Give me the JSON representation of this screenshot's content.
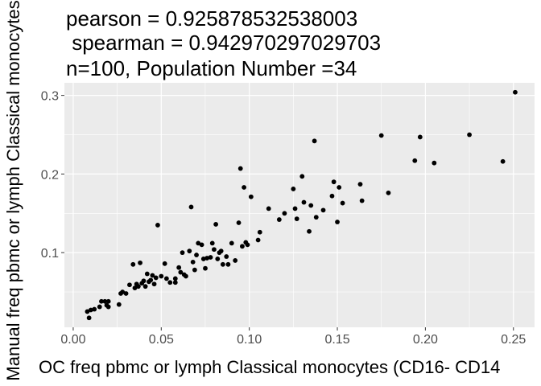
{
  "chart_data": {
    "type": "scatter",
    "title_lines": [
      "pearson = 0.925878532538003",
      " spearman = 0.942970297029703",
      "n=100, Population Number =34"
    ],
    "xlabel": "OC freq pbmc or lymph Classical monocytes (CD16- CD14",
    "ylabel": "Manual freq pbmc or lymph Classical monocytes",
    "xlim": [
      -0.005,
      0.262
    ],
    "ylim": [
      0.005,
      0.316
    ],
    "x_ticks": [
      0.0,
      0.05,
      0.1,
      0.15,
      0.2,
      0.25
    ],
    "x_tick_labels": [
      "0.00",
      "0.05",
      "0.10",
      "0.15",
      "0.20",
      "0.25"
    ],
    "y_ticks": [
      0.1,
      0.2,
      0.3
    ],
    "y_tick_labels": [
      "0.1",
      "0.2",
      "0.3"
    ],
    "grid": true,
    "point_color": "#000000",
    "panel_background": "#ebebeb",
    "grid_color": "#ffffff",
    "points": [
      [
        0.008,
        0.025
      ],
      [
        0.009,
        0.017
      ],
      [
        0.01,
        0.027
      ],
      [
        0.012,
        0.028
      ],
      [
        0.015,
        0.031
      ],
      [
        0.016,
        0.038
      ],
      [
        0.018,
        0.038
      ],
      [
        0.019,
        0.033
      ],
      [
        0.02,
        0.038
      ],
      [
        0.02,
        0.031
      ],
      [
        0.026,
        0.034
      ],
      [
        0.027,
        0.048
      ],
      [
        0.028,
        0.05
      ],
      [
        0.03,
        0.048
      ],
      [
        0.032,
        0.059
      ],
      [
        0.034,
        0.085
      ],
      [
        0.035,
        0.055
      ],
      [
        0.036,
        0.06
      ],
      [
        0.037,
        0.057
      ],
      [
        0.038,
        0.087
      ],
      [
        0.039,
        0.061
      ],
      [
        0.04,
        0.064
      ],
      [
        0.041,
        0.057
      ],
      [
        0.042,
        0.073
      ],
      [
        0.043,
        0.063
      ],
      [
        0.044,
        0.065
      ],
      [
        0.045,
        0.071
      ],
      [
        0.046,
        0.06
      ],
      [
        0.047,
        0.068
      ],
      [
        0.048,
        0.135
      ],
      [
        0.05,
        0.07
      ],
      [
        0.052,
        0.086
      ],
      [
        0.053,
        0.067
      ],
      [
        0.055,
        0.062
      ],
      [
        0.058,
        0.062
      ],
      [
        0.06,
        0.081
      ],
      [
        0.061,
        0.075
      ],
      [
        0.062,
        0.1
      ],
      [
        0.063,
        0.072
      ],
      [
        0.064,
        0.07
      ],
      [
        0.066,
        0.102
      ],
      [
        0.067,
        0.158
      ],
      [
        0.068,
        0.088
      ],
      [
        0.069,
        0.078
      ],
      [
        0.07,
        0.097
      ],
      [
        0.071,
        0.112
      ],
      [
        0.073,
        0.11
      ],
      [
        0.074,
        0.092
      ],
      [
        0.076,
        0.093
      ],
      [
        0.078,
        0.094
      ],
      [
        0.079,
        0.112
      ],
      [
        0.08,
        0.104
      ],
      [
        0.081,
        0.136
      ],
      [
        0.082,
        0.092
      ],
      [
        0.083,
        0.1
      ],
      [
        0.084,
        0.102
      ],
      [
        0.085,
        0.085
      ],
      [
        0.087,
        0.095
      ],
      [
        0.088,
        0.085
      ],
      [
        0.09,
        0.112
      ],
      [
        0.094,
        0.138
      ],
      [
        0.095,
        0.207
      ],
      [
        0.096,
        0.108
      ],
      [
        0.097,
        0.183
      ],
      [
        0.098,
        0.113
      ],
      [
        0.099,
        0.11
      ],
      [
        0.101,
        0.171
      ],
      [
        0.105,
        0.116
      ],
      [
        0.106,
        0.126
      ],
      [
        0.111,
        0.156
      ],
      [
        0.117,
        0.142
      ],
      [
        0.125,
        0.181
      ],
      [
        0.126,
        0.156
      ],
      [
        0.127,
        0.143
      ],
      [
        0.13,
        0.197
      ],
      [
        0.131,
        0.164
      ],
      [
        0.134,
        0.127
      ],
      [
        0.135,
        0.16
      ],
      [
        0.137,
        0.242
      ],
      [
        0.138,
        0.145
      ],
      [
        0.142,
        0.154
      ],
      [
        0.147,
        0.172
      ],
      [
        0.148,
        0.19
      ],
      [
        0.15,
        0.139
      ],
      [
        0.151,
        0.183
      ],
      [
        0.153,
        0.163
      ],
      [
        0.163,
        0.187
      ],
      [
        0.164,
        0.166
      ],
      [
        0.175,
        0.249
      ],
      [
        0.179,
        0.176
      ],
      [
        0.194,
        0.217
      ],
      [
        0.197,
        0.247
      ],
      [
        0.205,
        0.214
      ],
      [
        0.225,
        0.25
      ],
      [
        0.244,
        0.216
      ],
      [
        0.251,
        0.304
      ],
      [
        0.058,
        0.067
      ],
      [
        0.075,
        0.08
      ],
      [
        0.092,
        0.09
      ],
      [
        0.12,
        0.15
      ]
    ]
  }
}
